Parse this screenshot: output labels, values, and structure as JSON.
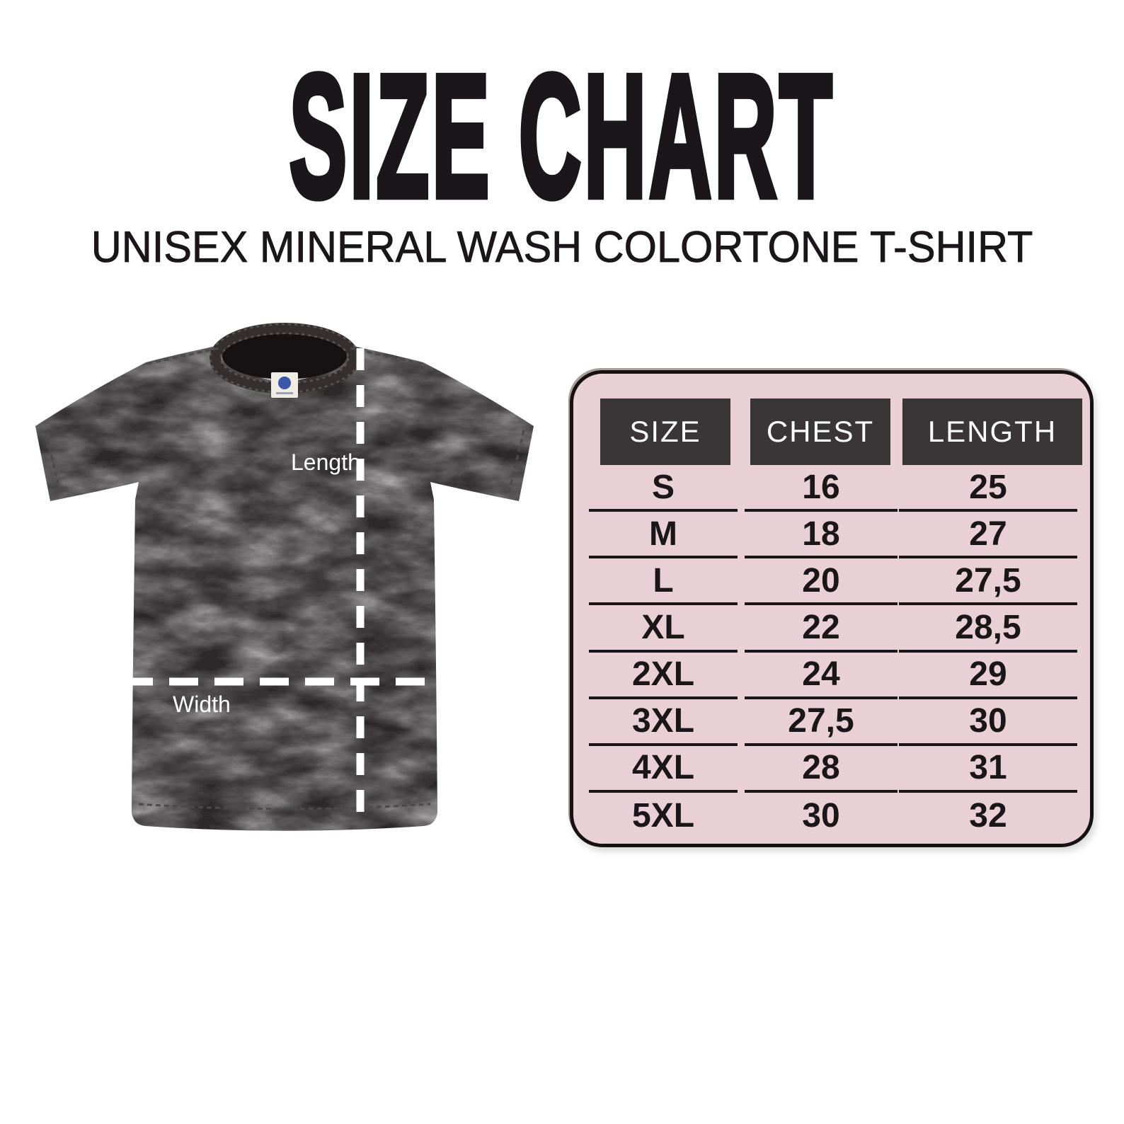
{
  "chart_data": {
    "type": "table",
    "title": "SIZE CHART",
    "subtitle": "UNISEX MINERAL WASH COLORTONE T-SHIRT",
    "columns": [
      "SIZE",
      "CHEST",
      "LENGTH"
    ],
    "rows": [
      [
        "S",
        "16",
        "25"
      ],
      [
        "M",
        "18",
        "27"
      ],
      [
        "L",
        "20",
        "27,5"
      ],
      [
        "XL",
        "22",
        "28,5"
      ],
      [
        "2XL",
        "24",
        "29"
      ],
      [
        "3XL",
        "27,5",
        "30"
      ],
      [
        "4XL",
        "28",
        "31"
      ],
      [
        "5XL",
        "30",
        "32"
      ]
    ],
    "annotations": [
      "Length",
      "Width"
    ]
  },
  "colors": {
    "ink": "#1b1619",
    "table_bg": "#e9d0d6",
    "table_border": "#171114",
    "header_bg": "#3a3637",
    "header_text": "#ffffff",
    "shirt": "#2d292a",
    "measure_line": "#ffffff"
  }
}
